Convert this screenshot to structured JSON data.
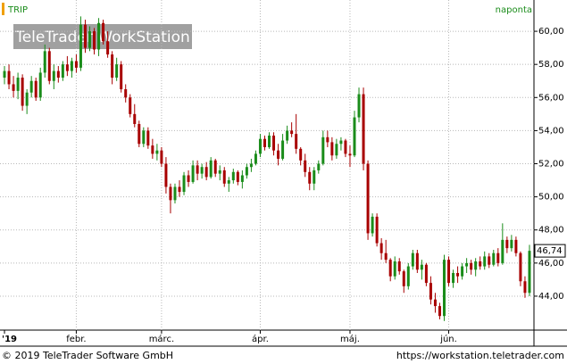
{
  "chart_data": {
    "type": "candlestick",
    "symbol": "TRIP",
    "interval": "naponta",
    "watermark": "TeleTrader WorkStation",
    "footer_left": "© 2019 TeleTrader Software GmbH",
    "footer_right": "https://workstation.teletrader.com",
    "up_color": "#1a8c1a",
    "down_color": "#a80000",
    "ylim": [
      41.95,
      61.89
    ],
    "yticks": [
      {
        "value": 44,
        "label": "44,00"
      },
      {
        "value": 46,
        "label": "46,00"
      },
      {
        "value": 48,
        "label": "48,00"
      },
      {
        "value": 50,
        "label": "50,00"
      },
      {
        "value": 52,
        "label": "52,00"
      },
      {
        "value": 54,
        "label": "54,00"
      },
      {
        "value": 56,
        "label": "56,00"
      },
      {
        "value": 58,
        "label": "58,00"
      },
      {
        "value": 60,
        "label": "60,00"
      }
    ],
    "xticks": [
      {
        "value": 0,
        "label": "'19"
      },
      {
        "value": 16,
        "label": "febr."
      },
      {
        "value": 35,
        "label": "márc."
      },
      {
        "value": 57,
        "label": "ápr."
      },
      {
        "value": 77,
        "label": "máj."
      },
      {
        "value": 99,
        "label": "jún."
      }
    ],
    "grid": true,
    "last_price_label": "46,74",
    "ohlc": [
      [
        57.2,
        57.9,
        56.8,
        57.6
      ],
      [
        57.6,
        58.0,
        56.5,
        56.8
      ],
      [
        56.8,
        57.3,
        56.0,
        56.4
      ],
      [
        56.4,
        57.5,
        55.9,
        57.2
      ],
      [
        57.2,
        57.4,
        55.2,
        55.5
      ],
      [
        55.5,
        56.5,
        55.0,
        56.3
      ],
      [
        56.3,
        57.3,
        56.0,
        57.0
      ],
      [
        57.0,
        57.2,
        55.8,
        56.0
      ],
      [
        56.0,
        57.8,
        55.8,
        57.5
      ],
      [
        57.5,
        59.2,
        57.2,
        58.8
      ],
      [
        58.8,
        59.0,
        56.8,
        57.0
      ],
      [
        57.0,
        58.0,
        56.5,
        57.6
      ],
      [
        57.6,
        57.9,
        56.9,
        57.2
      ],
      [
        57.2,
        58.2,
        57.0,
        58.0
      ],
      [
        58.0,
        58.5,
        57.3,
        57.6
      ],
      [
        57.6,
        58.4,
        57.2,
        58.2
      ],
      [
        58.2,
        58.6,
        57.5,
        57.8
      ],
      [
        57.8,
        60.9,
        57.6,
        60.4
      ],
      [
        60.4,
        60.7,
        58.7,
        59.0
      ],
      [
        59.0,
        60.3,
        58.8,
        60.0
      ],
      [
        60.0,
        60.2,
        58.6,
        58.9
      ],
      [
        58.9,
        60.8,
        58.5,
        60.5
      ],
      [
        60.5,
        60.7,
        59.2,
        59.4
      ],
      [
        59.4,
        60.0,
        58.4,
        58.6
      ],
      [
        58.6,
        58.8,
        56.8,
        57.2
      ],
      [
        57.2,
        58.4,
        57.0,
        58.0
      ],
      [
        58.0,
        58.2,
        56.3,
        56.5
      ],
      [
        56.5,
        56.8,
        55.7,
        56.0
      ],
      [
        56.0,
        56.2,
        54.8,
        55.0
      ],
      [
        55.0,
        55.6,
        54.2,
        54.4
      ],
      [
        54.4,
        54.6,
        53.0,
        53.2
      ],
      [
        53.2,
        54.2,
        53.0,
        54.0
      ],
      [
        54.0,
        54.2,
        52.9,
        53.1
      ],
      [
        53.1,
        53.5,
        52.3,
        52.6
      ],
      [
        52.6,
        53.2,
        52.2,
        52.8
      ],
      [
        52.8,
        53.0,
        51.8,
        52.0
      ],
      [
        52.0,
        52.4,
        50.2,
        50.6
      ],
      [
        50.6,
        50.8,
        49.0,
        49.8
      ],
      [
        49.8,
        50.8,
        49.6,
        50.6
      ],
      [
        50.6,
        51.0,
        50.0,
        50.3
      ],
      [
        50.3,
        51.5,
        50.1,
        51.3
      ],
      [
        51.3,
        51.6,
        50.6,
        50.9
      ],
      [
        50.9,
        52.2,
        50.8,
        51.9
      ],
      [
        51.9,
        52.2,
        51.0,
        51.4
      ],
      [
        51.4,
        52.0,
        51.1,
        51.8
      ],
      [
        51.8,
        52.1,
        51.0,
        51.2
      ],
      [
        51.2,
        52.4,
        51.1,
        52.2
      ],
      [
        52.2,
        52.3,
        51.2,
        51.4
      ],
      [
        51.4,
        51.9,
        51.0,
        51.6
      ],
      [
        51.6,
        51.8,
        50.6,
        50.8
      ],
      [
        50.8,
        51.2,
        50.3,
        51.0
      ],
      [
        51.0,
        51.7,
        50.8,
        51.5
      ],
      [
        51.5,
        51.6,
        50.7,
        50.9
      ],
      [
        50.9,
        51.6,
        50.5,
        51.3
      ],
      [
        51.3,
        52.0,
        51.1,
        51.8
      ],
      [
        51.8,
        52.3,
        51.5,
        52.0
      ],
      [
        52.0,
        52.8,
        51.9,
        52.6
      ],
      [
        52.6,
        53.8,
        52.4,
        53.5
      ],
      [
        53.5,
        53.7,
        52.8,
        53.0
      ],
      [
        53.0,
        53.9,
        52.9,
        53.7
      ],
      [
        53.7,
        53.9,
        52.5,
        52.8
      ],
      [
        52.8,
        53.2,
        51.9,
        52.3
      ],
      [
        52.3,
        53.8,
        52.2,
        53.4
      ],
      [
        53.4,
        54.3,
        53.2,
        54.0
      ],
      [
        54.0,
        54.5,
        53.6,
        53.8
      ],
      [
        53.8,
        55.0,
        52.6,
        52.9
      ],
      [
        52.9,
        53.0,
        51.9,
        52.2
      ],
      [
        52.2,
        52.6,
        51.2,
        51.5
      ],
      [
        51.5,
        51.8,
        50.4,
        50.8
      ],
      [
        50.8,
        51.8,
        50.4,
        51.6
      ],
      [
        51.6,
        52.2,
        51.4,
        52.0
      ],
      [
        52.0,
        54.0,
        51.9,
        53.6
      ],
      [
        53.6,
        54.0,
        53.0,
        53.3
      ],
      [
        53.3,
        53.6,
        52.2,
        52.5
      ],
      [
        52.5,
        53.5,
        52.3,
        53.2
      ],
      [
        53.2,
        53.6,
        52.8,
        53.4
      ],
      [
        53.4,
        53.5,
        52.4,
        52.6
      ],
      [
        52.6,
        53.1,
        51.8,
        52.5
      ],
      [
        52.5,
        55.2,
        52.4,
        54.8
      ],
      [
        54.8,
        56.6,
        54.5,
        56.2
      ],
      [
        56.2,
        56.6,
        51.6,
        52.0
      ],
      [
        52.0,
        52.2,
        47.4,
        47.8
      ],
      [
        47.8,
        49.0,
        47.6,
        48.8
      ],
      [
        48.8,
        49.0,
        47.0,
        47.2
      ],
      [
        47.2,
        47.5,
        46.2,
        46.6
      ],
      [
        46.6,
        47.4,
        46.0,
        46.2
      ],
      [
        46.2,
        46.3,
        44.9,
        45.2
      ],
      [
        45.2,
        46.4,
        45.0,
        46.1
      ],
      [
        46.1,
        46.3,
        45.3,
        45.5
      ],
      [
        45.5,
        45.6,
        44.2,
        44.6
      ],
      [
        44.6,
        46.0,
        44.4,
        45.8
      ],
      [
        45.8,
        46.8,
        45.6,
        46.6
      ],
      [
        46.6,
        46.8,
        45.4,
        45.6
      ],
      [
        45.6,
        46.2,
        45.0,
        45.9
      ],
      [
        45.9,
        46.0,
        44.6,
        44.8
      ],
      [
        44.8,
        45.2,
        43.5,
        43.8
      ],
      [
        43.8,
        44.2,
        43.0,
        43.4
      ],
      [
        43.4,
        43.6,
        42.6,
        42.8
      ],
      [
        42.8,
        46.5,
        42.5,
        46.2
      ],
      [
        46.2,
        46.4,
        44.6,
        44.8
      ],
      [
        44.8,
        45.6,
        44.5,
        45.4
      ],
      [
        45.4,
        45.8,
        44.8,
        45.2
      ],
      [
        45.2,
        46.0,
        45.0,
        45.8
      ],
      [
        45.8,
        46.3,
        45.4,
        46.0
      ],
      [
        46.0,
        46.2,
        45.3,
        45.6
      ],
      [
        45.6,
        46.3,
        45.2,
        46.1
      ],
      [
        46.1,
        46.4,
        45.6,
        45.8
      ],
      [
        45.8,
        46.7,
        45.6,
        46.4
      ],
      [
        46.4,
        46.6,
        45.7,
        45.9
      ],
      [
        45.9,
        46.8,
        45.8,
        46.6
      ],
      [
        46.6,
        46.9,
        45.8,
        46.0
      ],
      [
        46.0,
        48.4,
        45.9,
        47.4
      ],
      [
        47.4,
        47.6,
        46.6,
        46.9
      ],
      [
        46.9,
        47.7,
        46.7,
        47.4
      ],
      [
        47.4,
        47.6,
        46.4,
        46.6
      ],
      [
        46.6,
        46.7,
        44.6,
        44.9
      ],
      [
        44.9,
        45.2,
        43.9,
        44.2
      ],
      [
        44.2,
        47.1,
        44.0,
        46.74
      ]
    ]
  }
}
